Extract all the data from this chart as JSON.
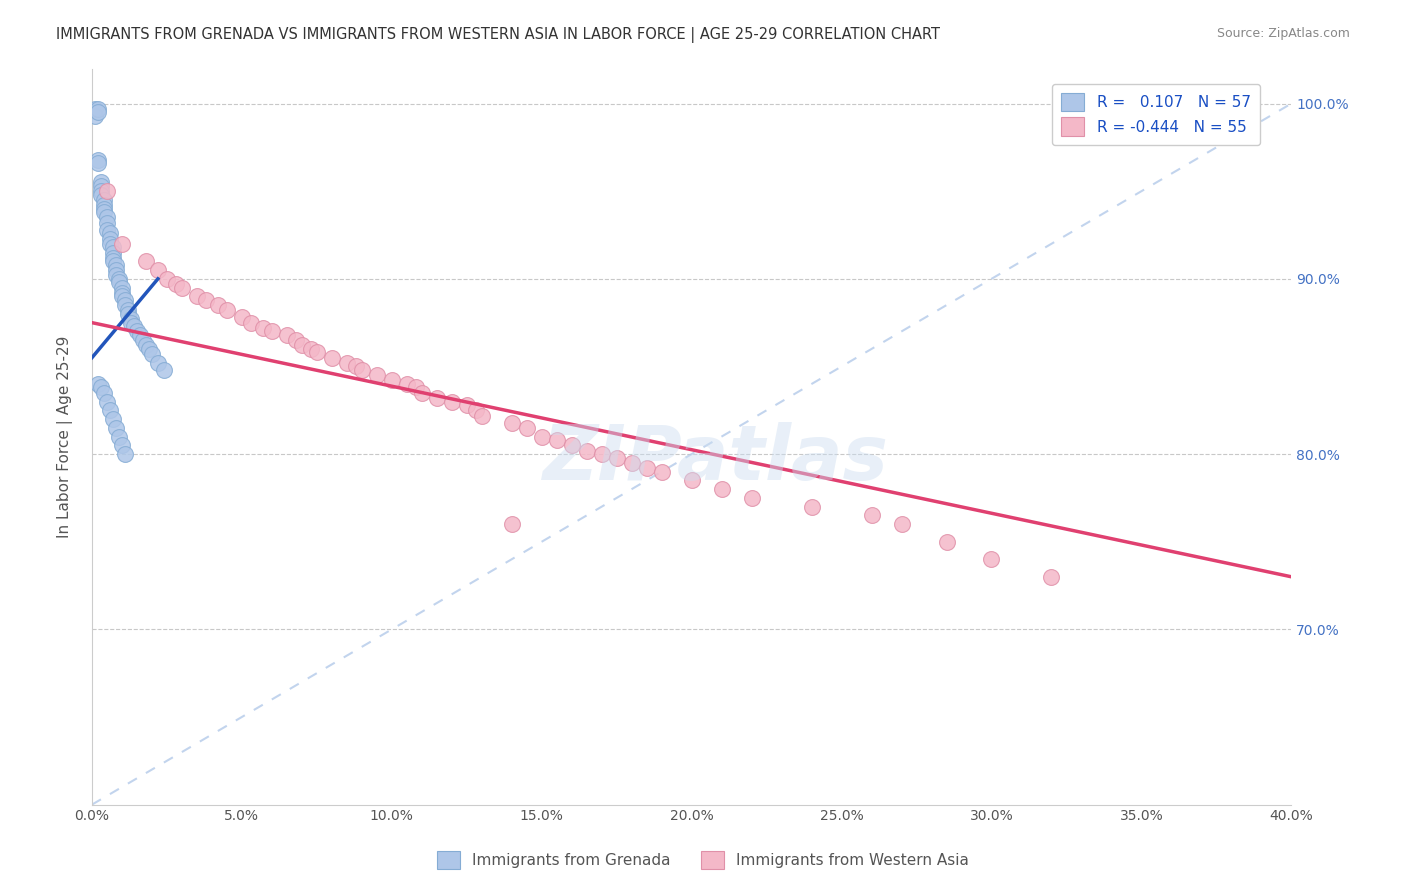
{
  "title": "IMMIGRANTS FROM GRENADA VS IMMIGRANTS FROM WESTERN ASIA IN LABOR FORCE | AGE 25-29 CORRELATION CHART",
  "source": "Source: ZipAtlas.com",
  "ylabel": "In Labor Force | Age 25-29",
  "xlim": [
    0.0,
    0.4
  ],
  "ylim": [
    0.6,
    1.02
  ],
  "xticks": [
    0.0,
    0.05,
    0.1,
    0.15,
    0.2,
    0.25,
    0.3,
    0.35,
    0.4
  ],
  "xtick_labels": [
    "0.0%",
    "5.0%",
    "10.0%",
    "15.0%",
    "20.0%",
    "25.0%",
    "30.0%",
    "35.0%",
    "40.0%"
  ],
  "yticks": [
    0.7,
    0.8,
    0.9,
    1.0
  ],
  "ytick_labels_right": [
    "70.0%",
    "80.0%",
    "90.0%",
    "100.0%"
  ],
  "grid_color": "#c8c8c8",
  "watermark": "ZIPatlas",
  "blue_scatter_x": [
    0.001,
    0.001,
    0.002,
    0.002,
    0.002,
    0.002,
    0.003,
    0.003,
    0.003,
    0.003,
    0.004,
    0.004,
    0.004,
    0.004,
    0.005,
    0.005,
    0.005,
    0.006,
    0.006,
    0.006,
    0.007,
    0.007,
    0.007,
    0.007,
    0.008,
    0.008,
    0.008,
    0.009,
    0.009,
    0.01,
    0.01,
    0.01,
    0.011,
    0.011,
    0.012,
    0.012,
    0.013,
    0.013,
    0.014,
    0.015,
    0.016,
    0.017,
    0.018,
    0.019,
    0.02,
    0.022,
    0.024,
    0.002,
    0.003,
    0.004,
    0.005,
    0.006,
    0.007,
    0.008,
    0.009,
    0.01,
    0.011
  ],
  "blue_scatter_y": [
    0.997,
    0.993,
    0.997,
    0.995,
    0.968,
    0.966,
    0.955,
    0.953,
    0.95,
    0.948,
    0.945,
    0.942,
    0.94,
    0.938,
    0.935,
    0.932,
    0.928,
    0.926,
    0.923,
    0.92,
    0.918,
    0.915,
    0.912,
    0.91,
    0.908,
    0.905,
    0.902,
    0.9,
    0.898,
    0.895,
    0.892,
    0.89,
    0.888,
    0.885,
    0.882,
    0.88,
    0.877,
    0.875,
    0.873,
    0.87,
    0.868,
    0.865,
    0.862,
    0.86,
    0.857,
    0.852,
    0.848,
    0.84,
    0.838,
    0.835,
    0.83,
    0.825,
    0.82,
    0.815,
    0.81,
    0.805,
    0.8
  ],
  "pink_scatter_x": [
    0.005,
    0.01,
    0.018,
    0.022,
    0.025,
    0.028,
    0.03,
    0.035,
    0.038,
    0.042,
    0.045,
    0.05,
    0.053,
    0.057,
    0.06,
    0.065,
    0.068,
    0.07,
    0.073,
    0.075,
    0.08,
    0.085,
    0.088,
    0.09,
    0.095,
    0.1,
    0.105,
    0.108,
    0.11,
    0.115,
    0.12,
    0.125,
    0.128,
    0.13,
    0.14,
    0.145,
    0.15,
    0.155,
    0.16,
    0.165,
    0.17,
    0.175,
    0.18,
    0.185,
    0.19,
    0.2,
    0.21,
    0.22,
    0.24,
    0.26,
    0.27,
    0.285,
    0.3,
    0.32,
    0.14
  ],
  "pink_scatter_y": [
    0.95,
    0.92,
    0.91,
    0.905,
    0.9,
    0.897,
    0.895,
    0.89,
    0.888,
    0.885,
    0.882,
    0.878,
    0.875,
    0.872,
    0.87,
    0.868,
    0.865,
    0.862,
    0.86,
    0.858,
    0.855,
    0.852,
    0.85,
    0.848,
    0.845,
    0.842,
    0.84,
    0.838,
    0.835,
    0.832,
    0.83,
    0.828,
    0.825,
    0.822,
    0.818,
    0.815,
    0.81,
    0.808,
    0.805,
    0.802,
    0.8,
    0.798,
    0.795,
    0.792,
    0.79,
    0.785,
    0.78,
    0.775,
    0.77,
    0.765,
    0.76,
    0.75,
    0.74,
    0.73,
    0.76
  ],
  "blue_line_x": [
    0.0,
    0.022
  ],
  "blue_line_y": [
    0.855,
    0.9
  ],
  "pink_line_x": [
    0.0,
    0.4
  ],
  "pink_line_y": [
    0.875,
    0.73
  ],
  "diag_line_x": [
    0.0,
    0.4
  ],
  "diag_line_y": [
    0.6,
    1.0
  ],
  "scatter_size": 130,
  "blue_color": "#aec6e8",
  "blue_edge": "#85acd4",
  "pink_color": "#f4b8c8",
  "pink_edge": "#e090a8",
  "blue_line_color": "#2255bb",
  "pink_line_color": "#e04070",
  "diag_color": "#aec6e8"
}
